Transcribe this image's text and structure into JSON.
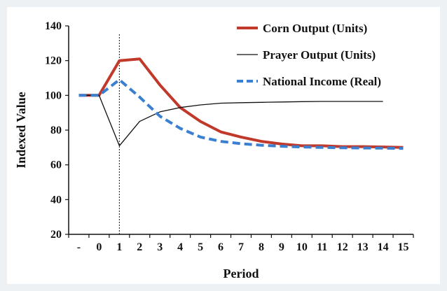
{
  "chart_data": {
    "type": "line",
    "title": "",
    "xlabel": "Period",
    "ylabel": "Indexed Value",
    "categories": [
      "-",
      "0",
      "1",
      "2",
      "3",
      "4",
      "5",
      "6",
      "7",
      "8",
      "9",
      "10",
      "11",
      "12",
      "13",
      "14",
      "15"
    ],
    "ylim": [
      20,
      140
    ],
    "yticks": [
      20,
      40,
      60,
      80,
      100,
      120,
      140
    ],
    "shock_period": "1",
    "legend_position": "top-right",
    "series": [
      {
        "name": "Corn Output (Units)",
        "color": "#c0392b",
        "style": "solid-thick",
        "values": [
          100,
          100,
          120,
          121,
          106,
          93,
          85,
          79,
          76,
          73.5,
          72,
          71,
          71,
          70.5,
          70.5,
          70.3,
          70
        ]
      },
      {
        "name": "Prayer Output (Units)",
        "color": "#111111",
        "style": "solid-thin",
        "values": [
          100,
          100,
          71,
          85,
          90.5,
          93,
          94.5,
          95.5,
          95.8,
          96,
          96.2,
          96.4,
          96.5,
          96.5,
          96.5,
          96.5,
          null
        ]
      },
      {
        "name": "National Income (Real)",
        "color": "#3a7fd0",
        "style": "dashed",
        "values": [
          100,
          100,
          109,
          99,
          88,
          81,
          76,
          73.5,
          72.2,
          71.3,
          70.7,
          70.3,
          70,
          69.8,
          69.7,
          69.6,
          69.5
        ]
      }
    ]
  }
}
